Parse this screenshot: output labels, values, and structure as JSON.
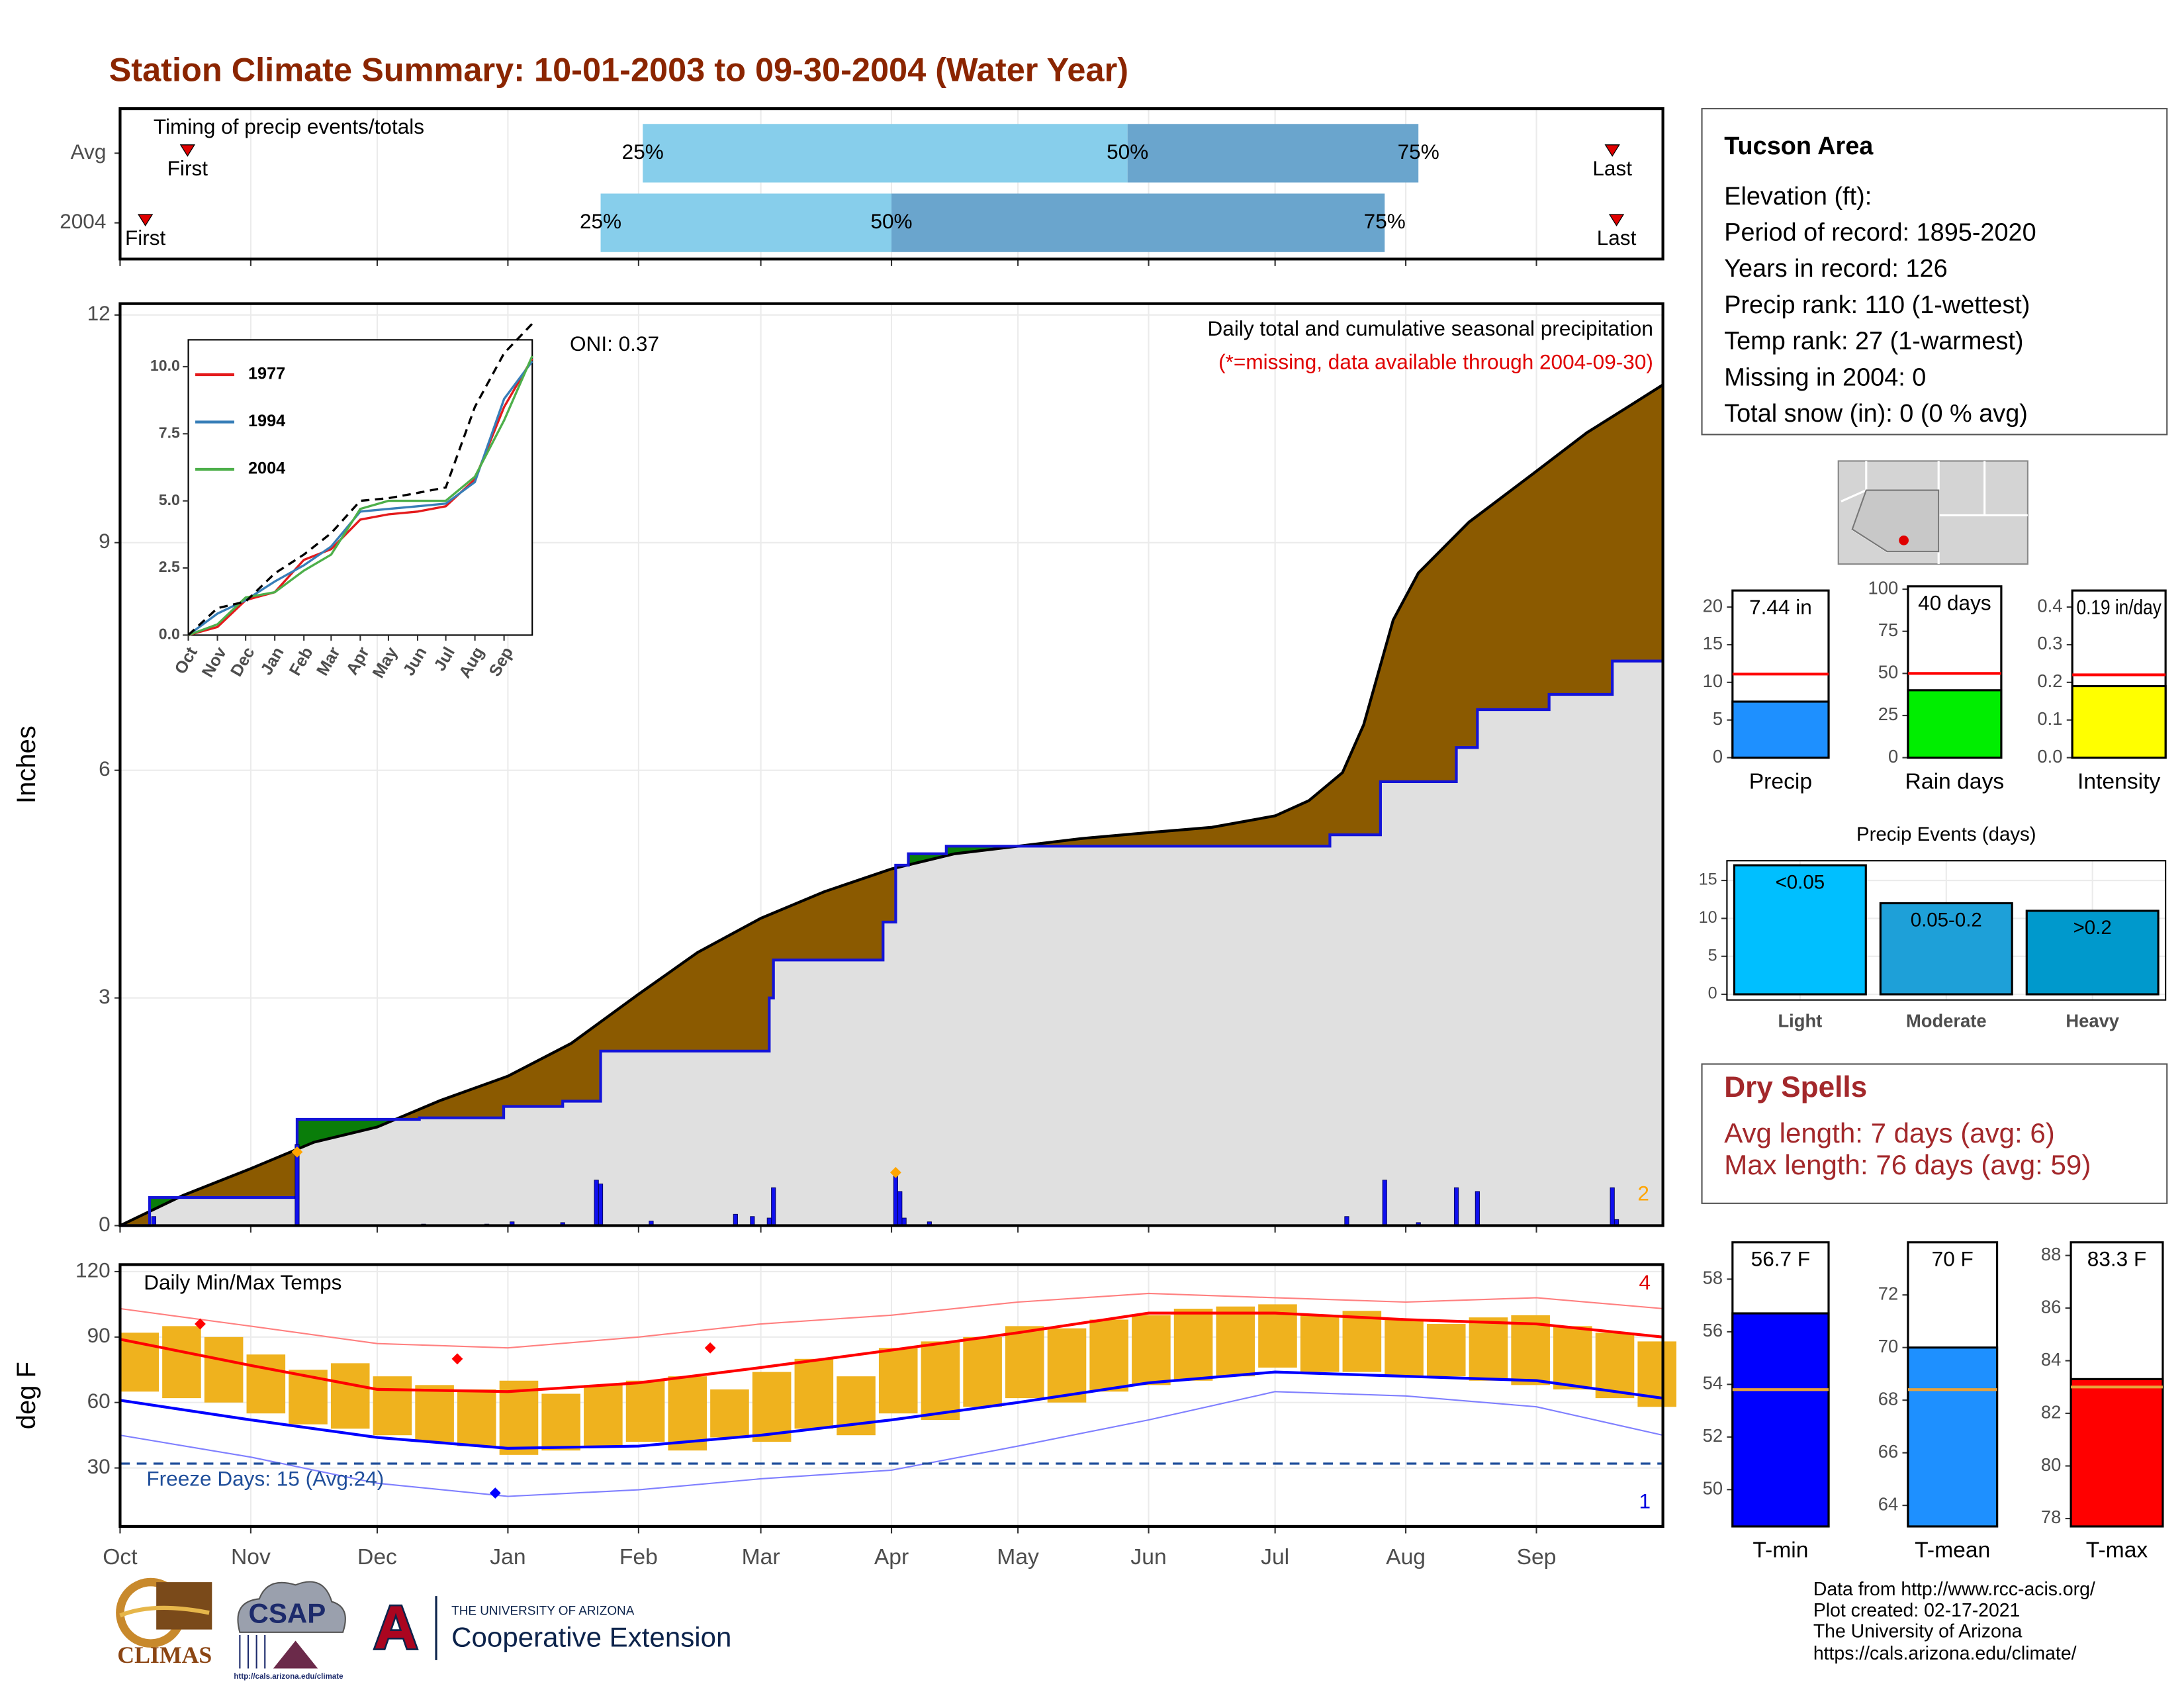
{
  "title": "Station Climate Summary: 10-01-2003 to 09-30-2004 (Water Year)",
  "info": {
    "title": "Tucson Area",
    "lines": [
      "Elevation (ft):",
      "Period of record: 1895-2020",
      "Years in record: 126",
      "Precip rank: 110 (1-wettest)",
      "Temp rank: 27 (1-warmest)",
      "Missing in 2004: 0",
      "Total snow (in): 0 (0 % avg)"
    ]
  },
  "dry_spells": {
    "title": "Dry Spells",
    "lines": [
      "Avg length: 7 days (avg: 6)",
      "Max length: 76 days (avg: 59)"
    ]
  },
  "footer": {
    "climas": "CLIMAS",
    "csap": "CSAP",
    "csap_url": "http://cals.arizona.edu/climate",
    "ua_mark": "A",
    "ua": "THE UNIVERSITY OF ARIZONA",
    "extension": "Cooperative Extension",
    "credits": [
      "Data from http://www.rcc-acis.org/",
      "Plot created: 02-17-2021",
      "The University of Arizona",
      "https://cals.arizona.edu/climate/"
    ]
  },
  "chart_data": [
    {
      "type": "timeline",
      "title": "Timing of precip events/totals",
      "xlim": [
        0,
        366
      ],
      "rows": [
        {
          "name": "Avg",
          "first": 16,
          "q25": 124,
          "q50": 239,
          "q75": 308,
          "last": 354
        },
        {
          "name": "2004",
          "first": 6,
          "q25": 114,
          "q50": 183,
          "q75": 300,
          "last": 355
        }
      ],
      "marker_labels": {
        "first": "First",
        "last": "Last"
      },
      "quantile_labels": {
        "q25": "25%",
        "q50": "50%",
        "q75": "75%"
      },
      "colors": {
        "light": "#87ceeb",
        "dark": "#6aa5cd",
        "marker": "#e00000"
      }
    },
    {
      "type": "area",
      "ylabel": "Inches",
      "xlim": [
        0,
        366
      ],
      "ylim": [
        0,
        12.15
      ],
      "yticks": [
        0,
        3,
        6,
        9,
        12
      ],
      "grid": true,
      "heading": "Daily total and cumulative seasonal precipitation",
      "note": "(*=missing, data available through 2004-09-30)",
      "oni": "ONI: 0.37",
      "record_count": 2,
      "average": {
        "x": [
          0,
          15,
          31,
          46,
          61,
          76,
          92,
          107,
          123,
          137,
          152,
          167,
          183,
          198,
          213,
          228,
          244,
          259,
          274,
          282,
          290,
          295,
          302,
          308,
          320,
          335,
          348,
          358,
          366
        ],
        "values": [
          0,
          0.4,
          0.75,
          1.1,
          1.3,
          1.65,
          1.97,
          2.4,
          3.05,
          3.6,
          4.05,
          4.4,
          4.7,
          4.9,
          5.0,
          5.1,
          5.18,
          5.25,
          5.4,
          5.6,
          5.97,
          6.6,
          7.98,
          8.6,
          9.27,
          9.9,
          10.45,
          10.8,
          11.08
        ]
      },
      "current": {
        "x": [
          0,
          7,
          42,
          71,
          91,
          105,
          114,
          154,
          155,
          181,
          184,
          187,
          196,
          287,
          299,
          317,
          322,
          339,
          354
        ],
        "values": [
          0,
          0.37,
          1.4,
          1.42,
          1.57,
          1.64,
          2.3,
          3.0,
          3.5,
          4.0,
          4.75,
          4.9,
          5.0,
          5.15,
          5.85,
          6.3,
          6.8,
          7.0,
          7.44
        ]
      },
      "daily": {
        "x": [
          8,
          42,
          72,
          87,
          93,
          105,
          113,
          114,
          126,
          146,
          150,
          154,
          155,
          184,
          185,
          186,
          192,
          291,
          300,
          308,
          317,
          322,
          354,
          355
        ],
        "values": [
          0.12,
          1.07,
          0.02,
          0.02,
          0.05,
          0.04,
          0.6,
          0.55,
          0.06,
          0.15,
          0.12,
          0.1,
          0.5,
          0.65,
          0.45,
          0.1,
          0.05,
          0.12,
          0.6,
          0.04,
          0.5,
          0.45,
          0.5,
          0.08
        ]
      },
      "records": {
        "x": [
          42,
          184
        ],
        "values": [
          0.97,
          0.7
        ]
      },
      "colors": {
        "deficit": "#8b5a00",
        "surplus": "#0a7d0a",
        "base": "#e0e0e0",
        "current": "#1414d8",
        "average": "#000000",
        "daily": "#1010ee",
        "record": "#ffa500"
      }
    },
    {
      "type": "line",
      "xlim": [
        0,
        366
      ],
      "ylim": [
        0,
        11
      ],
      "yticks": [
        {
          "value": 0,
          "label": "0.0"
        },
        2.5,
        {
          "value": 5,
          "label": "5.0"
        },
        7.5,
        {
          "value": 10,
          "label": "10.0"
        }
      ],
      "xticks": [
        {
          "value": 0,
          "label": "Oct"
        },
        {
          "value": 31,
          "label": "Nov"
        },
        {
          "value": 61,
          "label": "Dec"
        },
        {
          "value": 92,
          "label": "Jan"
        },
        {
          "value": 123,
          "label": "Feb"
        },
        {
          "value": 152,
          "label": "Mar"
        },
        {
          "value": 183,
          "label": "Apr"
        },
        {
          "value": 213,
          "label": "May"
        },
        {
          "value": 244,
          "label": "Jun"
        },
        {
          "value": 274,
          "label": "Jul"
        },
        {
          "value": 305,
          "label": "Aug"
        },
        {
          "value": 336,
          "label": "Sep"
        }
      ],
      "x": [
        0,
        31,
        61,
        92,
        123,
        152,
        183,
        213,
        244,
        274,
        305,
        336,
        366
      ],
      "average": {
        "color": "#000000",
        "values": [
          0,
          1.0,
          1.25,
          2.3,
          3.0,
          3.8,
          5.0,
          5.1,
          5.3,
          5.5,
          8.5,
          10.5,
          11.6
        ]
      },
      "series": [
        {
          "name": "1977",
          "color": "#e41a1c",
          "values": [
            0,
            0.3,
            1.3,
            1.6,
            2.8,
            3.2,
            4.3,
            4.5,
            4.6,
            4.8,
            5.8,
            8.5,
            10.3
          ]
        },
        {
          "name": "1994",
          "color": "#377eb8",
          "values": [
            0,
            0.8,
            1.3,
            2.0,
            2.6,
            3.3,
            4.6,
            4.7,
            4.8,
            4.9,
            5.7,
            8.8,
            10.2
          ]
        },
        {
          "name": "2004",
          "color": "#4daf4a",
          "values": [
            0,
            0.4,
            1.4,
            1.6,
            2.4,
            3.0,
            4.7,
            5.0,
            5.0,
            5.0,
            5.9,
            8.0,
            10.4
          ]
        }
      ]
    },
    {
      "type": "rangebar",
      "title": "Daily Min/Max Temps",
      "ylabel": "deg F",
      "xlim": [
        0,
        366
      ],
      "ylim": [
        3.2,
        123.2
      ],
      "yticks": [
        30,
        60,
        90,
        120
      ],
      "grid": true,
      "xticks": [
        {
          "value": 0,
          "label": "Oct"
        },
        {
          "value": 31,
          "label": "Nov"
        },
        {
          "value": 61,
          "label": "Dec"
        },
        {
          "value": 92,
          "label": "Jan"
        },
        {
          "value": 123,
          "label": "Feb"
        },
        {
          "value": 152,
          "label": "Mar"
        },
        {
          "value": 183,
          "label": "Apr"
        },
        {
          "value": 213,
          "label": "May"
        },
        {
          "value": 244,
          "label": "Jun"
        },
        {
          "value": 274,
          "label": "Jul"
        },
        {
          "value": 305,
          "label": "Aug"
        },
        {
          "value": 336,
          "label": "Sep"
        }
      ],
      "freeze": {
        "value": 32,
        "label": "Freeze Days: 15 (Avg:24)",
        "color": "#1f4e9a"
      },
      "record_high_count": 4,
      "record_low_count": 1,
      "daily": {
        "color": "#efb21e",
        "x": [
          0,
          10,
          20,
          30,
          40,
          50,
          60,
          70,
          80,
          90,
          100,
          110,
          120,
          130,
          140,
          150,
          160,
          170,
          180,
          190,
          200,
          210,
          220,
          230,
          240,
          250,
          260,
          270,
          280,
          290,
          300,
          310,
          320,
          330,
          340,
          350,
          360
        ],
        "high": [
          92,
          95,
          90,
          82,
          75,
          78,
          72,
          68,
          66,
          70,
          64,
          68,
          70,
          72,
          66,
          74,
          80,
          72,
          85,
          88,
          90,
          95,
          94,
          98,
          100,
          103,
          104,
          105,
          100,
          102,
          98,
          96,
          99,
          100,
          95,
          92,
          88
        ],
        "low": [
          65,
          62,
          60,
          55,
          50,
          48,
          45,
          42,
          40,
          36,
          38,
          40,
          42,
          38,
          44,
          42,
          48,
          45,
          55,
          52,
          58,
          62,
          60,
          65,
          68,
          70,
          72,
          76,
          74,
          74,
          72,
          72,
          70,
          68,
          66,
          62,
          58
        ]
      },
      "monthly_x": [
        0,
        31,
        61,
        92,
        123,
        152,
        183,
        213,
        244,
        274,
        305,
        336,
        366
      ],
      "lines": [
        {
          "color": "#ff0000",
          "width": 2,
          "values": [
            89,
            77,
            66,
            65,
            69,
            76,
            84,
            92,
            101,
            101,
            98,
            96,
            90
          ]
        },
        {
          "color": "#0000ff",
          "width": 2,
          "values": [
            61,
            52,
            44,
            39,
            40,
            45,
            52,
            60,
            69,
            74,
            72,
            70,
            62
          ]
        },
        {
          "color": "#ff7f7f",
          "width": 1,
          "values": [
            103,
            95,
            87,
            85,
            90,
            96,
            100,
            106,
            110,
            108,
            106,
            108,
            103
          ]
        },
        {
          "color": "#7f7fff",
          "width": 1,
          "values": [
            45,
            35,
            23,
            17,
            20,
            25,
            29,
            40,
            52,
            65,
            63,
            58,
            45
          ]
        }
      ],
      "record_highs": {
        "color": "#ff0000",
        "x": [
          19,
          80,
          140
        ],
        "values": [
          96,
          80,
          85
        ]
      },
      "record_lows": {
        "color": "#0000ff",
        "x": [
          89
        ],
        "values": [
          18.5
        ]
      }
    },
    {
      "type": "bar",
      "categories": [
        "Precip"
      ],
      "values": [
        7.44
      ],
      "value_labels": [
        "7.44 in"
      ],
      "reference": 11.1,
      "reference_color": "#ff0000",
      "color": "#1e90ff",
      "ylim": [
        0,
        22.2
      ],
      "yticks": [
        0,
        5,
        10,
        15,
        20
      ]
    },
    {
      "type": "bar",
      "categories": [
        "Rain days"
      ],
      "values": [
        40
      ],
      "value_labels": [
        "40 days"
      ],
      "reference": 50,
      "reference_color": "#ff0000",
      "color": "#00ee00",
      "ylim": [
        0,
        101.7
      ],
      "yticks": [
        0,
        25,
        50,
        75,
        100
      ]
    },
    {
      "type": "bar",
      "categories": [
        "Intensity"
      ],
      "values": [
        0.19
      ],
      "value_labels": [
        "0.19 in/day"
      ],
      "reference": 0.22,
      "reference_color": "#ff0000",
      "color": "#ffff00",
      "ylim": [
        0,
        0.444
      ],
      "yticks": [
        {
          "value": 0,
          "label": "0.0"
        },
        0.1,
        0.2,
        0.3,
        0.4
      ]
    },
    {
      "type": "events",
      "title": "Precip Events (days)",
      "categories": [
        "Light",
        "Moderate",
        "Heavy"
      ],
      "bin_labels": [
        "<0.05",
        "0.05-0.2",
        ">0.2"
      ],
      "values": [
        17,
        12,
        11
      ],
      "colors": [
        "#00bfff",
        "#1ea0d8",
        "#0099cc"
      ],
      "ylim": [
        -0.75,
        17.6
      ],
      "yticks": [
        0,
        5,
        10,
        15
      ],
      "grid": true
    },
    {
      "type": "bar",
      "categories": [
        "T-min"
      ],
      "values": [
        56.7
      ],
      "value_labels": [
        "56.7 F"
      ],
      "reference": 53.8,
      "reference_color": "#e8a33c",
      "color": "#0000ff",
      "ylim": [
        48.6,
        59.4
      ],
      "yticks": [
        50,
        52,
        54,
        56,
        58
      ]
    },
    {
      "type": "bar",
      "categories": [
        "T-mean"
      ],
      "values": [
        70
      ],
      "value_labels": [
        "70 F"
      ],
      "reference": 68.4,
      "reference_color": "#e8a33c",
      "color": "#1e90ff",
      "ylim": [
        63.2,
        74
      ],
      "yticks": [
        64,
        66,
        68,
        70,
        72
      ]
    },
    {
      "type": "bar",
      "categories": [
        "T-max"
      ],
      "values": [
        83.3
      ],
      "value_labels": [
        "83.3 F"
      ],
      "reference": 83.0,
      "reference_color": "#e8a33c",
      "color": "#ff0000",
      "ylim": [
        77.7,
        88.5
      ],
      "yticks": [
        78,
        80,
        82,
        84,
        86,
        88
      ]
    }
  ]
}
